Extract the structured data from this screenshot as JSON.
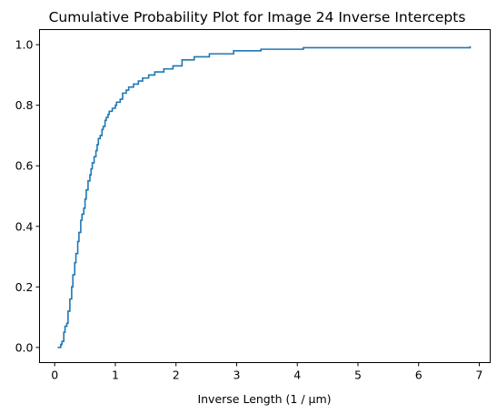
{
  "chart_data": {
    "type": "line",
    "title": "Cumulative Probability Plot for Image 24 Inverse Intercepts",
    "xlabel": "Inverse Length (1 / µm)",
    "ylabel": "",
    "xlim": [
      -0.25,
      7.18
    ],
    "ylim": [
      -0.05,
      1.05
    ],
    "xticks": [
      0,
      1,
      2,
      3,
      4,
      5,
      6,
      7
    ],
    "yticks": [
      0.0,
      0.2,
      0.4,
      0.6,
      0.8,
      1.0
    ],
    "xtick_labels": [
      "0",
      "1",
      "2",
      "3",
      "4",
      "5",
      "6",
      "7"
    ],
    "ytick_labels": [
      "0.0",
      "0.2",
      "0.4",
      "0.6",
      "0.8",
      "1.0"
    ],
    "grid": false,
    "line_color": "#1f77b4",
    "series": [
      {
        "x": [
          0.05,
          0.1,
          0.12,
          0.15,
          0.17,
          0.2,
          0.22,
          0.25,
          0.28,
          0.3,
          0.33,
          0.35,
          0.38,
          0.4,
          0.43,
          0.45,
          0.48,
          0.5,
          0.52,
          0.55,
          0.58,
          0.6,
          0.62,
          0.65,
          0.68,
          0.7,
          0.72,
          0.75,
          0.78,
          0.8,
          0.83,
          0.85,
          0.88,
          0.9,
          0.95,
          1.0,
          1.02,
          1.08,
          1.12,
          1.18,
          1.22,
          1.3,
          1.38,
          1.45,
          1.55,
          1.65,
          1.8,
          1.95,
          2.1,
          2.3,
          2.55,
          2.95,
          3.4,
          4.1,
          6.85
        ],
        "y": [
          0.0,
          0.01,
          0.02,
          0.05,
          0.07,
          0.08,
          0.12,
          0.16,
          0.2,
          0.24,
          0.28,
          0.31,
          0.35,
          0.38,
          0.42,
          0.44,
          0.46,
          0.49,
          0.52,
          0.55,
          0.57,
          0.59,
          0.61,
          0.63,
          0.65,
          0.67,
          0.69,
          0.7,
          0.72,
          0.73,
          0.75,
          0.76,
          0.77,
          0.78,
          0.79,
          0.8,
          0.81,
          0.82,
          0.84,
          0.85,
          0.86,
          0.87,
          0.88,
          0.89,
          0.9,
          0.91,
          0.92,
          0.93,
          0.95,
          0.96,
          0.97,
          0.98,
          0.985,
          0.99,
          0.995
        ]
      }
    ]
  }
}
